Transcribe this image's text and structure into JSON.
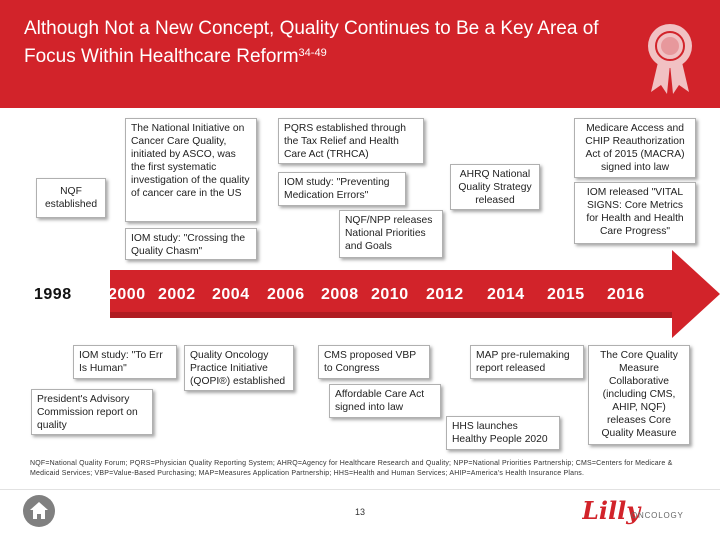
{
  "slide": {
    "title_main": "Although Not a New Concept, Quality Continues to Be a Key Area of Focus Within Healthcare Reform",
    "title_ref": "34-49",
    "page_number": "13",
    "footnote": "NQF=National Quality Forum; PQRS=Physician Quality Reporting System; AHRQ=Agency for Healthcare Research and Quality; NPP=National Priorities Partnership; CMS=Centers for Medicare & Medicaid Services; VBP=Value-Based Purchasing; MAP=Measures Application Partnership; HHS=Health and Human Services; AHIP=America's Health Insurance Plans.",
    "logo_text": "Lilly",
    "logo_sub": "ONCOLOGY",
    "header_icon": "award-ribbon-icon",
    "home_icon": "home-icon"
  },
  "timeline": {
    "years": [
      "1998",
      "2000",
      "2002",
      "2004",
      "2006",
      "2008",
      "2010",
      "2012",
      "2014",
      "2015",
      "2016"
    ]
  },
  "events_above": {
    "nqf": "NQF established",
    "ncqi": "The National Initiative on Cancer Care Quality, initiated by ASCO, was the first systematic investigation of the quality of cancer care in the US",
    "chasm": "IOM study: \"Crossing the Quality Chasm\"",
    "pqrs": "PQRS established through the Tax Relief and Health Care Act (TRHCA)",
    "errors": "IOM study: \"Preventing Medication Errors\"",
    "nqf_npp": "NQF/NPP releases National Priorities and Goals",
    "ahrq": "AHRQ National Quality Strategy released",
    "macra": "Medicare Access and CHIP Reauthorization Act of 2015 (MACRA) signed into law",
    "vital": "IOM released \"VITAL SIGNS: Core Metrics for Health and Health Care Progress\""
  },
  "events_below": {
    "err_human": "IOM study: \"To Err Is Human\"",
    "presidents": "President's Advisory Commission report on quality",
    "qopi": "Quality Oncology Practice Initiative (QOPI®) established",
    "cms_vbp": "CMS proposed VBP to Congress",
    "aca": "Affordable Care Act signed into law",
    "map": "MAP pre-rulemaking report released",
    "hhs": "HHS launches Healthy People 2020",
    "core": "The Core Quality Measure Collaborative (including CMS, AHIP, NQF) releases Core Quality Measure"
  },
  "colors": {
    "header": "#d2232a",
    "arrow": "#d2232a",
    "arrow_dark": "#b01c22"
  }
}
